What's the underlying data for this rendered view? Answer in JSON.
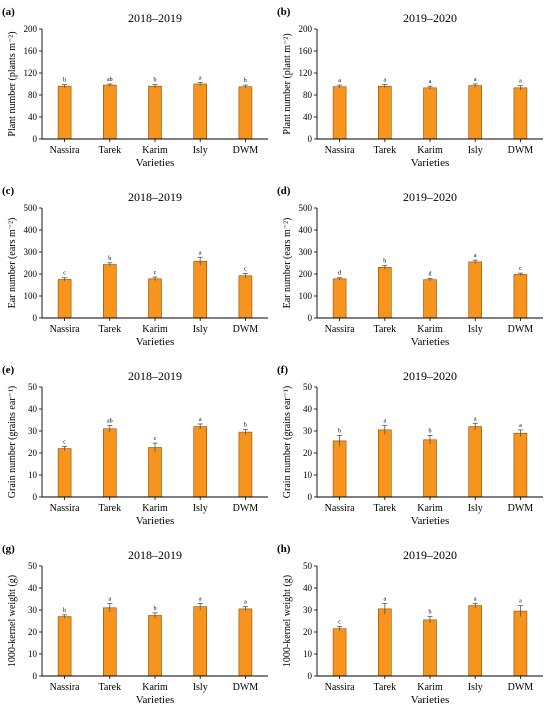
{
  "chart_data": [
    {
      "type": "bar",
      "panel_label": "(a)",
      "title": "2018–2019",
      "ylabel": "Plant number (plants m⁻²)",
      "xlabel": "Varieties",
      "categories": [
        "Nassira",
        "Tarek",
        "Karim",
        "Isly",
        "DWM"
      ],
      "values": [
        96,
        98,
        96,
        100,
        95
      ],
      "errors": [
        3,
        2,
        3,
        3,
        3
      ],
      "letters": [
        "b",
        "ab",
        "b",
        "a",
        "b"
      ],
      "ylim": [
        0,
        200
      ],
      "yticks": [
        0,
        40,
        80,
        120,
        160,
        200
      ],
      "color": "#F7941D"
    },
    {
      "type": "bar",
      "panel_label": "(b)",
      "title": "2019–2020",
      "ylabel": "Plant number (plant m⁻²)",
      "xlabel": "Varieties",
      "categories": [
        "Nassira",
        "Tarek",
        "Karim",
        "Isly",
        "DWM"
      ],
      "values": [
        95,
        96,
        93,
        97,
        93
      ],
      "errors": [
        3,
        3,
        3,
        3,
        4
      ],
      "letters": [
        "a",
        "a",
        "a",
        "a",
        "a"
      ],
      "ylim": [
        0,
        200
      ],
      "yticks": [
        0,
        40,
        80,
        120,
        160,
        200
      ],
      "color": "#F7941D"
    },
    {
      "type": "bar",
      "panel_label": "(c)",
      "title": "2018–2019",
      "ylabel": "Ear number (ears m⁻²)",
      "xlabel": "Varieties",
      "categories": [
        "Nassira",
        "Tarek",
        "Karim",
        "Isly",
        "DWM"
      ],
      "values": [
        175,
        243,
        178,
        258,
        192
      ],
      "errors": [
        8,
        8,
        8,
        18,
        10
      ],
      "letters": [
        "c",
        "b",
        "c",
        "a",
        "c"
      ],
      "ylim": [
        0,
        500
      ],
      "yticks": [
        0,
        100,
        200,
        300,
        400,
        500
      ],
      "color": "#F7941D"
    },
    {
      "type": "bar",
      "panel_label": "(d)",
      "title": "2019–2020",
      "ylabel": "Ear number (ears m⁻²)",
      "xlabel": "Varieties",
      "categories": [
        "Nassira",
        "Tarek",
        "Karim",
        "Isly",
        "DWM"
      ],
      "values": [
        178,
        230,
        174,
        255,
        198
      ],
      "errors": [
        5,
        8,
        6,
        8,
        6
      ],
      "letters": [
        "d",
        "b",
        "d",
        "a",
        "c"
      ],
      "ylim": [
        0,
        500
      ],
      "yticks": [
        0,
        100,
        200,
        300,
        400,
        500
      ],
      "color": "#F7941D"
    },
    {
      "type": "bar",
      "panel_label": "(e)",
      "title": "2018–2019",
      "ylabel": "Grain number (grains ear⁻¹)",
      "xlabel": "Varieties",
      "categories": [
        "Nassira",
        "Tarek",
        "Karim",
        "Isly",
        "DWM"
      ],
      "values": [
        22,
        31,
        22.5,
        32,
        29.5
      ],
      "errors": [
        1,
        1.5,
        2,
        1.2,
        1.2
      ],
      "letters": [
        "c",
        "ab",
        "c",
        "a",
        "b"
      ],
      "ylim": [
        0,
        50
      ],
      "yticks": [
        0,
        10,
        20,
        30,
        40,
        50
      ],
      "color": "#F7941D"
    },
    {
      "type": "bar",
      "panel_label": "(f)",
      "title": "2019–2020",
      "ylabel": "Grain number (grains ear⁻¹)",
      "xlabel": "Varieties",
      "categories": [
        "Nassira",
        "Tarek",
        "Karim",
        "Isly",
        "DWM"
      ],
      "values": [
        25.5,
        30.5,
        26,
        32,
        29
      ],
      "errors": [
        2.5,
        2,
        2,
        1.5,
        1.5
      ],
      "letters": [
        "b",
        "a",
        "b",
        "a",
        "a"
      ],
      "ylim": [
        0,
        50
      ],
      "yticks": [
        0,
        10,
        20,
        30,
        40,
        50
      ],
      "color": "#F7941D"
    },
    {
      "type": "bar",
      "panel_label": "(g)",
      "title": "2018–2019",
      "ylabel": "1000-kernel weight (g)",
      "xlabel": "Varieties",
      "categories": [
        "Nassira",
        "Tarek",
        "Karim",
        "Isly",
        "DWM"
      ],
      "values": [
        27,
        31,
        27.5,
        31.5,
        30.5
      ],
      "errors": [
        0.8,
        2,
        1.2,
        1.5,
        1
      ],
      "letters": [
        "b",
        "a",
        "b",
        "a",
        "a"
      ],
      "ylim": [
        0,
        50
      ],
      "yticks": [
        0,
        10,
        20,
        30,
        40,
        50
      ],
      "color": "#F7941D"
    },
    {
      "type": "bar",
      "panel_label": "(h)",
      "title": "2019–2020",
      "ylabel": "1000-kernel weight (g)",
      "xlabel": "Varieties",
      "categories": [
        "Nassira",
        "Tarek",
        "Karim",
        "Isly",
        "DWM"
      ],
      "values": [
        21.5,
        30.5,
        25.5,
        32,
        29.5
      ],
      "errors": [
        1,
        2.5,
        1.5,
        1,
        2.5
      ],
      "letters": [
        "c",
        "a",
        "b",
        "a",
        "a"
      ],
      "ylim": [
        0,
        50
      ],
      "yticks": [
        0,
        10,
        20,
        30,
        40,
        50
      ],
      "color": "#F7941D"
    }
  ]
}
